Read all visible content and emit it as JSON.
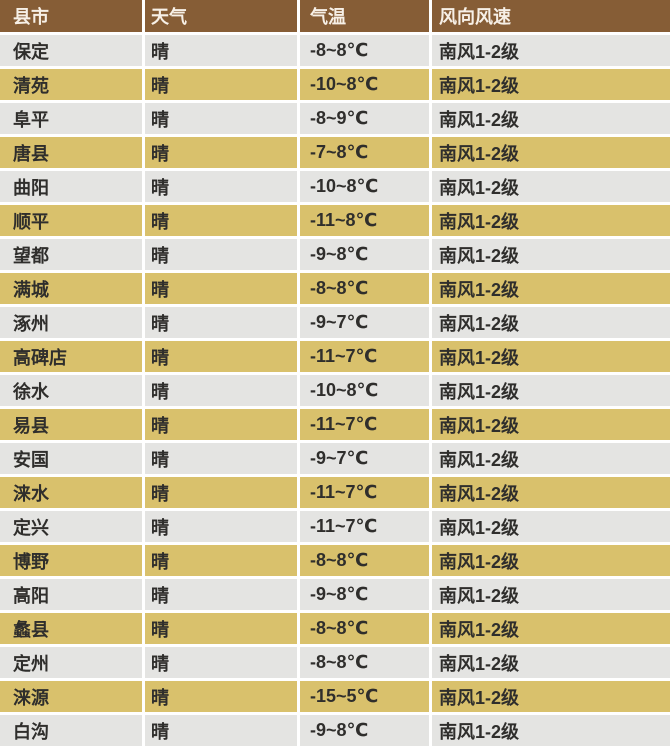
{
  "chart_data": {
    "type": "table",
    "columns": [
      "县市",
      "天气",
      "气温",
      "风向风速"
    ],
    "rows": [
      [
        "保定",
        "晴",
        "-8~8℃",
        "南风1-2级"
      ],
      [
        "清苑",
        "晴",
        "-10~8℃",
        "南风1-2级"
      ],
      [
        "阜平",
        "晴",
        "-8~9℃",
        "南风1-2级"
      ],
      [
        "唐县",
        "晴",
        "-7~8℃",
        "南风1-2级"
      ],
      [
        "曲阳",
        "晴",
        "-10~8℃",
        "南风1-2级"
      ],
      [
        "顺平",
        "晴",
        "-11~8℃",
        "南风1-2级"
      ],
      [
        "望都",
        "晴",
        "-9~8℃",
        "南风1-2级"
      ],
      [
        "满城",
        "晴",
        "-8~8℃",
        "南风1-2级"
      ],
      [
        "涿州",
        "晴",
        "-9~7℃",
        "南风1-2级"
      ],
      [
        "高碑店",
        "晴",
        "-11~7℃",
        "南风1-2级"
      ],
      [
        "徐水",
        "晴",
        "-10~8℃",
        "南风1-2级"
      ],
      [
        "易县",
        "晴",
        "-11~7℃",
        "南风1-2级"
      ],
      [
        "安国",
        "晴",
        "-9~7℃",
        "南风1-2级"
      ],
      [
        "涞水",
        "晴",
        "-11~7℃",
        "南风1-2级"
      ],
      [
        "定兴",
        "晴",
        "-11~7℃",
        "南风1-2级"
      ],
      [
        "博野",
        "晴",
        "-8~8℃",
        "南风1-2级"
      ],
      [
        "高阳",
        "晴",
        "-9~8℃",
        "南风1-2级"
      ],
      [
        "蠡县",
        "晴",
        "-8~8℃",
        "南风1-2级"
      ],
      [
        "定州",
        "晴",
        "-8~8℃",
        "南风1-2级"
      ],
      [
        "涞源",
        "晴",
        "-15~5℃",
        "南风1-2级"
      ],
      [
        "白沟",
        "晴",
        "-9~8℃",
        "南风1-2级"
      ]
    ]
  },
  "colors": {
    "header_bg": "#865d36",
    "header_text": "#f7f0e7",
    "row_bg": "#e4e4e2",
    "row_alt_bg": "#d9c16c",
    "divider": "#ffffff",
    "cell_text": "#2f2e2c"
  }
}
